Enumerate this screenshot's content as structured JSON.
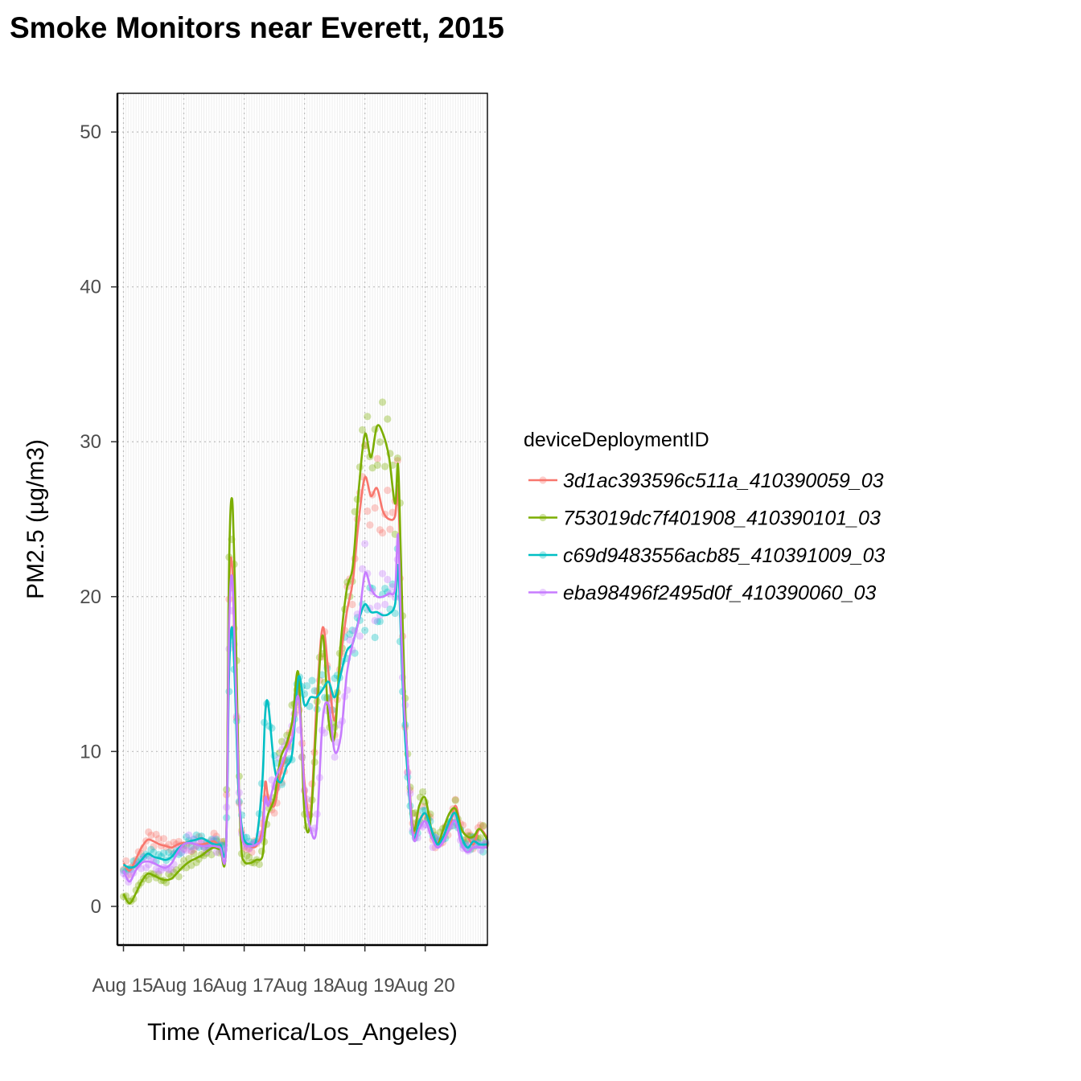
{
  "chart_data": {
    "type": "line",
    "title": "Smoke Monitors near Everett, 2015",
    "xlabel": "Time (America/Los_Angeles)",
    "ylabel": "PM2.5 (µg/m3)",
    "ylim": [
      -2.5,
      52.5
    ],
    "yticks": [
      0,
      10,
      20,
      30,
      40,
      50
    ],
    "xlim": [
      -0.1,
      6.03
    ],
    "xticks": [
      0,
      1,
      2,
      3,
      4,
      5
    ],
    "xtick_labels": [
      "Aug 15",
      "Aug 16",
      "Aug 17",
      "Aug 18",
      "Aug 19",
      "Aug 20"
    ],
    "grid": true,
    "legend_title": "deviceDeploymentID",
    "legend_position": "right",
    "x_unit": "days since Aug 15 00:00",
    "series": [
      {
        "name": "3d1ac393596c511a_410390059_03",
        "color": "#F8766D",
        "points": [
          [
            0.0,
            2.8
          ],
          [
            0.1,
            2.3
          ],
          [
            0.2,
            3.0
          ],
          [
            0.3,
            3.8
          ],
          [
            0.4,
            4.3
          ],
          [
            0.5,
            4.2
          ],
          [
            0.6,
            4.0
          ],
          [
            0.7,
            3.9
          ],
          [
            0.8,
            3.8
          ],
          [
            0.9,
            4.0
          ],
          [
            1.0,
            4.1
          ],
          [
            1.1,
            4.1
          ],
          [
            1.2,
            4.0
          ],
          [
            1.3,
            4.0
          ],
          [
            1.4,
            4.1
          ],
          [
            1.5,
            4.2
          ],
          [
            1.6,
            3.9
          ],
          [
            1.7,
            3.9
          ],
          [
            1.75,
            20.0
          ],
          [
            1.8,
            22.0
          ],
          [
            1.85,
            15.0
          ],
          [
            1.9,
            8.0
          ],
          [
            1.95,
            5.0
          ],
          [
            2.0,
            4.2
          ],
          [
            2.1,
            3.9
          ],
          [
            2.2,
            3.9
          ],
          [
            2.3,
            5.0
          ],
          [
            2.35,
            8.0
          ],
          [
            2.4,
            7.0
          ],
          [
            2.5,
            6.5
          ],
          [
            2.6,
            8.5
          ],
          [
            2.7,
            10.0
          ],
          [
            2.8,
            12.0
          ],
          [
            2.9,
            14.0
          ],
          [
            3.0,
            8.0
          ],
          [
            3.1,
            6.0
          ],
          [
            3.2,
            13.0
          ],
          [
            3.3,
            18.0
          ],
          [
            3.4,
            15.0
          ],
          [
            3.5,
            12.0
          ],
          [
            3.6,
            16.0
          ],
          [
            3.7,
            19.0
          ],
          [
            3.8,
            21.0
          ],
          [
            3.9,
            25.0
          ],
          [
            4.0,
            27.7
          ],
          [
            4.1,
            26.5
          ],
          [
            4.2,
            27.0
          ],
          [
            4.3,
            25.5
          ],
          [
            4.4,
            25.0
          ],
          [
            4.5,
            25.2
          ],
          [
            4.55,
            27.0
          ],
          [
            4.6,
            20.0
          ],
          [
            4.65,
            14.0
          ],
          [
            4.7,
            10.0
          ],
          [
            4.8,
            5.0
          ],
          [
            4.9,
            5.5
          ],
          [
            5.0,
            6.0
          ],
          [
            5.1,
            5.0
          ],
          [
            5.2,
            4.0
          ],
          [
            5.3,
            4.5
          ],
          [
            5.4,
            5.0
          ],
          [
            5.5,
            6.5
          ],
          [
            5.6,
            5.0
          ],
          [
            5.7,
            4.5
          ],
          [
            5.8,
            4.0
          ],
          [
            5.9,
            5.0
          ],
          [
            6.03,
            4.4
          ]
        ]
      },
      {
        "name": "753019dc7f401908_410390101_03",
        "color": "#7CAE00",
        "points": [
          [
            0.0,
            0.8
          ],
          [
            0.1,
            0.2
          ],
          [
            0.2,
            0.8
          ],
          [
            0.3,
            1.6
          ],
          [
            0.4,
            2.1
          ],
          [
            0.5,
            2.0
          ],
          [
            0.6,
            1.8
          ],
          [
            0.7,
            1.7
          ],
          [
            0.8,
            1.8
          ],
          [
            0.9,
            2.2
          ],
          [
            1.0,
            2.6
          ],
          [
            1.1,
            2.9
          ],
          [
            1.2,
            3.1
          ],
          [
            1.3,
            3.3
          ],
          [
            1.4,
            3.6
          ],
          [
            1.5,
            3.8
          ],
          [
            1.6,
            3.7
          ],
          [
            1.7,
            4.0
          ],
          [
            1.75,
            22.0
          ],
          [
            1.8,
            26.3
          ],
          [
            1.85,
            20.0
          ],
          [
            1.9,
            10.0
          ],
          [
            1.95,
            4.0
          ],
          [
            2.0,
            2.9
          ],
          [
            2.1,
            2.8
          ],
          [
            2.2,
            3.0
          ],
          [
            2.3,
            3.2
          ],
          [
            2.35,
            5.0
          ],
          [
            2.4,
            6.0
          ],
          [
            2.5,
            7.0
          ],
          [
            2.6,
            9.5
          ],
          [
            2.7,
            10.5
          ],
          [
            2.8,
            12.0
          ],
          [
            2.9,
            15.0
          ],
          [
            3.0,
            6.0
          ],
          [
            3.1,
            5.5
          ],
          [
            3.2,
            12.0
          ],
          [
            3.3,
            17.5
          ],
          [
            3.4,
            12.0
          ],
          [
            3.5,
            11.0
          ],
          [
            3.6,
            17.0
          ],
          [
            3.7,
            20.5
          ],
          [
            3.8,
            22.0
          ],
          [
            3.9,
            27.0
          ],
          [
            4.0,
            30.5
          ],
          [
            4.1,
            29.0
          ],
          [
            4.2,
            31.0
          ],
          [
            4.3,
            30.5
          ],
          [
            4.4,
            29.0
          ],
          [
            4.5,
            26.0
          ],
          [
            4.55,
            28.5
          ],
          [
            4.6,
            22.0
          ],
          [
            4.65,
            15.0
          ],
          [
            4.7,
            10.0
          ],
          [
            4.8,
            5.0
          ],
          [
            4.9,
            6.5
          ],
          [
            5.0,
            7.0
          ],
          [
            5.1,
            5.0
          ],
          [
            5.2,
            4.0
          ],
          [
            5.3,
            5.0
          ],
          [
            5.4,
            6.0
          ],
          [
            5.5,
            6.3
          ],
          [
            5.6,
            5.0
          ],
          [
            5.7,
            4.5
          ],
          [
            5.8,
            4.5
          ],
          [
            5.9,
            5.0
          ],
          [
            6.03,
            4.3
          ]
        ]
      },
      {
        "name": "c69d9483556acb85_410391009_03",
        "color": "#00BFC4",
        "points": [
          [
            0.0,
            2.7
          ],
          [
            0.1,
            2.5
          ],
          [
            0.2,
            2.6
          ],
          [
            0.3,
            3.0
          ],
          [
            0.4,
            3.4
          ],
          [
            0.5,
            3.2
          ],
          [
            0.6,
            3.1
          ],
          [
            0.7,
            3.0
          ],
          [
            0.8,
            3.2
          ],
          [
            0.9,
            3.7
          ],
          [
            1.0,
            4.0
          ],
          [
            1.1,
            4.2
          ],
          [
            1.2,
            4.3
          ],
          [
            1.3,
            4.4
          ],
          [
            1.4,
            4.2
          ],
          [
            1.5,
            4.0
          ],
          [
            1.6,
            4.0
          ],
          [
            1.7,
            4.0
          ],
          [
            1.75,
            15.0
          ],
          [
            1.8,
            18.0
          ],
          [
            1.85,
            14.0
          ],
          [
            1.9,
            8.0
          ],
          [
            1.95,
            5.5
          ],
          [
            2.0,
            4.3
          ],
          [
            2.1,
            4.0
          ],
          [
            2.2,
            4.3
          ],
          [
            2.3,
            8.0
          ],
          [
            2.35,
            12.5
          ],
          [
            2.4,
            13.0
          ],
          [
            2.5,
            9.0
          ],
          [
            2.6,
            8.0
          ],
          [
            2.7,
            9.0
          ],
          [
            2.8,
            10.0
          ],
          [
            2.9,
            14.8
          ],
          [
            3.0,
            13.0
          ],
          [
            3.1,
            13.5
          ],
          [
            3.2,
            13.5
          ],
          [
            3.3,
            14.0
          ],
          [
            3.4,
            14.5
          ],
          [
            3.5,
            13.5
          ],
          [
            3.6,
            15.0
          ],
          [
            3.7,
            16.5
          ],
          [
            3.8,
            17.0
          ],
          [
            3.9,
            18.5
          ],
          [
            4.0,
            19.5
          ],
          [
            4.1,
            19.0
          ],
          [
            4.2,
            19.0
          ],
          [
            4.3,
            18.8
          ],
          [
            4.4,
            18.9
          ],
          [
            4.5,
            19.5
          ],
          [
            4.55,
            22.0
          ],
          [
            4.6,
            17.0
          ],
          [
            4.65,
            12.0
          ],
          [
            4.7,
            9.0
          ],
          [
            4.8,
            4.5
          ],
          [
            4.9,
            5.5
          ],
          [
            5.0,
            6.0
          ],
          [
            5.1,
            5.0
          ],
          [
            5.2,
            4.0
          ],
          [
            5.3,
            4.5
          ],
          [
            5.4,
            5.5
          ],
          [
            5.5,
            6.0
          ],
          [
            5.6,
            4.5
          ],
          [
            5.7,
            3.8
          ],
          [
            5.8,
            4.2
          ],
          [
            5.9,
            4.0
          ],
          [
            6.03,
            4.0
          ]
        ]
      },
      {
        "name": "eba98496f2495d0f_410390060_03",
        "color": "#C77CFF",
        "points": [
          [
            0.0,
            2.3
          ],
          [
            0.1,
            1.6
          ],
          [
            0.2,
            2.3
          ],
          [
            0.3,
            2.8
          ],
          [
            0.4,
            2.9
          ],
          [
            0.5,
            2.8
          ],
          [
            0.6,
            2.6
          ],
          [
            0.7,
            2.5
          ],
          [
            0.8,
            2.8
          ],
          [
            0.9,
            3.5
          ],
          [
            1.0,
            4.0
          ],
          [
            1.1,
            4.1
          ],
          [
            1.2,
            4.0
          ],
          [
            1.3,
            3.9
          ],
          [
            1.4,
            3.9
          ],
          [
            1.5,
            3.9
          ],
          [
            1.6,
            3.8
          ],
          [
            1.7,
            3.8
          ],
          [
            1.75,
            18.0
          ],
          [
            1.8,
            21.3
          ],
          [
            1.85,
            16.0
          ],
          [
            1.9,
            9.0
          ],
          [
            1.95,
            5.0
          ],
          [
            2.0,
            4.0
          ],
          [
            2.1,
            3.9
          ],
          [
            2.2,
            4.0
          ],
          [
            2.3,
            4.5
          ],
          [
            2.35,
            7.0
          ],
          [
            2.4,
            6.5
          ],
          [
            2.5,
            8.0
          ],
          [
            2.6,
            9.0
          ],
          [
            2.7,
            10.0
          ],
          [
            2.8,
            11.0
          ],
          [
            2.9,
            13.5
          ],
          [
            3.0,
            7.5
          ],
          [
            3.1,
            5.0
          ],
          [
            3.2,
            5.0
          ],
          [
            3.3,
            12.0
          ],
          [
            3.4,
            13.0
          ],
          [
            3.5,
            10.0
          ],
          [
            3.6,
            11.0
          ],
          [
            3.7,
            15.0
          ],
          [
            3.8,
            17.0
          ],
          [
            3.9,
            18.5
          ],
          [
            4.0,
            21.5
          ],
          [
            4.1,
            20.5
          ],
          [
            4.2,
            20.0
          ],
          [
            4.3,
            20.0
          ],
          [
            4.4,
            20.2
          ],
          [
            4.5,
            20.5
          ],
          [
            4.55,
            24.0
          ],
          [
            4.6,
            18.0
          ],
          [
            4.65,
            13.0
          ],
          [
            4.7,
            10.0
          ],
          [
            4.8,
            4.5
          ],
          [
            4.9,
            5.0
          ],
          [
            5.0,
            5.5
          ],
          [
            5.1,
            4.5
          ],
          [
            5.2,
            3.8
          ],
          [
            5.3,
            4.2
          ],
          [
            5.4,
            5.0
          ],
          [
            5.5,
            5.5
          ],
          [
            5.6,
            4.0
          ],
          [
            5.7,
            3.5
          ],
          [
            5.8,
            3.8
          ],
          [
            5.9,
            3.8
          ],
          [
            6.03,
            3.8
          ]
        ]
      }
    ]
  }
}
